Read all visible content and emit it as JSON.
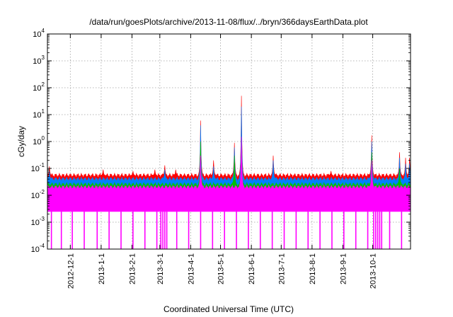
{
  "chart_data": {
    "type": "line",
    "title": "/data/run/goesPlots/archive/2013-11-08/flux/../bryn/366daysEarthData.plot",
    "xlabel": "Coordinated Universal Time (UTC)",
    "ylabel": "cGy/day",
    "yscale": "log",
    "ylim": [
      0.0001,
      10000
    ],
    "xlim": [
      "2012-11-08",
      "2013-11-08"
    ],
    "grid": true,
    "legend": "none",
    "x_ticks": [
      "2012-12-1",
      "2013-1-1",
      "2013-2-1",
      "2013-3-1",
      "2013-4-1",
      "2013-5-1",
      "2013-6-1",
      "2013-7-1",
      "2013-8-1",
      "2013-9-1",
      "2013-10-1"
    ],
    "y_ticks": [
      {
        "base": "10",
        "exp": "-4"
      },
      {
        "base": "10",
        "exp": "-3"
      },
      {
        "base": "10",
        "exp": "-2"
      },
      {
        "base": "10",
        "exp": "-1"
      },
      {
        "base": "10",
        "exp": "0"
      },
      {
        "base": "10",
        "exp": "1"
      },
      {
        "base": "10",
        "exp": "2"
      },
      {
        "base": "10",
        "exp": "3"
      },
      {
        "base": "10",
        "exp": "4"
      }
    ],
    "series": [
      {
        "color": "#ff0000",
        "baseline": 0.055,
        "peaks": [
          [
            "2012-11-10",
            0.12
          ],
          [
            "2013-1-3",
            0.09
          ],
          [
            "2013-2-2",
            0.08
          ],
          [
            "2013-2-24",
            0.09
          ],
          [
            "2013-3-6",
            0.13
          ],
          [
            "2013-3-17",
            0.09
          ],
          [
            "2013-4-11",
            6.0
          ],
          [
            "2013-4-24",
            0.2
          ],
          [
            "2013-5-15",
            0.9
          ],
          [
            "2013-5-22",
            50
          ],
          [
            "2013-6-23",
            0.3
          ],
          [
            "2013-8-20",
            0.08
          ],
          [
            "2013-9-30",
            1.7
          ],
          [
            "2013-10-28",
            0.4
          ],
          [
            "2013-11-3",
            0.25
          ],
          [
            "2013-11-7",
            0.25
          ]
        ]
      },
      {
        "color": "#0080ff",
        "baseline": 0.04,
        "peaks": [
          [
            "2012-11-10",
            0.08
          ],
          [
            "2013-3-6",
            0.09
          ],
          [
            "2013-4-11",
            4.0
          ],
          [
            "2013-4-24",
            0.12
          ],
          [
            "2013-5-15",
            0.6
          ],
          [
            "2013-5-22",
            20
          ],
          [
            "2013-6-23",
            0.2
          ],
          [
            "2013-9-30",
            1.0
          ],
          [
            "2013-10-28",
            0.25
          ],
          [
            "2013-11-3",
            0.15
          ],
          [
            "2013-11-7",
            0.15
          ]
        ]
      },
      {
        "color": "#00c000",
        "baseline": 0.025,
        "peaks": [
          [
            "2013-4-11",
            1.0
          ],
          [
            "2013-5-15",
            0.3
          ],
          [
            "2013-5-22",
            1.2
          ],
          [
            "2013-9-30",
            0.4
          ],
          [
            "2013-10-28",
            0.1
          ]
        ]
      },
      {
        "color": "#ff00ff",
        "baseline": 0.02,
        "lower": 0.0025,
        "floor_dips": [
          [
            "2012-11-12",
            0.0001
          ],
          [
            "2012-11-22",
            0.0001
          ],
          [
            "2012-12-3",
            0.0001
          ],
          [
            "2012-12-15",
            0.0001
          ],
          [
            "2012-12-28",
            0.0001
          ],
          [
            "2013-1-9",
            0.0001
          ],
          [
            "2013-1-21",
            0.0001
          ],
          [
            "2013-2-2",
            0.0001
          ],
          [
            "2013-2-14",
            0.0001
          ],
          [
            "2013-2-26",
            0.0001
          ],
          [
            "2013-3-2",
            0.0001
          ],
          [
            "2013-3-4",
            0.0001
          ],
          [
            "2013-3-6",
            0.0001
          ],
          [
            "2013-3-8",
            0.0001
          ],
          [
            "2013-3-18",
            0.0001
          ],
          [
            "2013-3-30",
            0.0001
          ],
          [
            "2013-4-11",
            0.0001
          ],
          [
            "2013-4-23",
            0.0001
          ],
          [
            "2013-5-5",
            0.0001
          ],
          [
            "2013-5-17",
            0.0001
          ],
          [
            "2013-5-29",
            0.0001
          ],
          [
            "2013-6-10",
            0.0001
          ],
          [
            "2013-6-22",
            0.0001
          ],
          [
            "2013-7-4",
            0.0001
          ],
          [
            "2013-7-16",
            0.0001
          ],
          [
            "2013-7-28",
            0.0001
          ],
          [
            "2013-8-9",
            0.0001
          ],
          [
            "2013-8-21",
            0.0001
          ],
          [
            "2013-9-2",
            0.0001
          ],
          [
            "2013-9-14",
            0.0001
          ],
          [
            "2013-9-26",
            0.0001
          ],
          [
            "2013-10-2",
            0.0001
          ],
          [
            "2013-10-4",
            0.0001
          ],
          [
            "2013-10-6",
            0.0001
          ],
          [
            "2013-10-8",
            0.0001
          ],
          [
            "2013-10-10",
            0.0001
          ],
          [
            "2013-10-18",
            0.0001
          ],
          [
            "2013-10-30",
            0.0001
          ]
        ],
        "peaks": [
          [
            "2013-4-11",
            0.3
          ],
          [
            "2013-5-22",
            1.5
          ],
          [
            "2013-9-30",
            0.2
          ]
        ]
      }
    ]
  }
}
